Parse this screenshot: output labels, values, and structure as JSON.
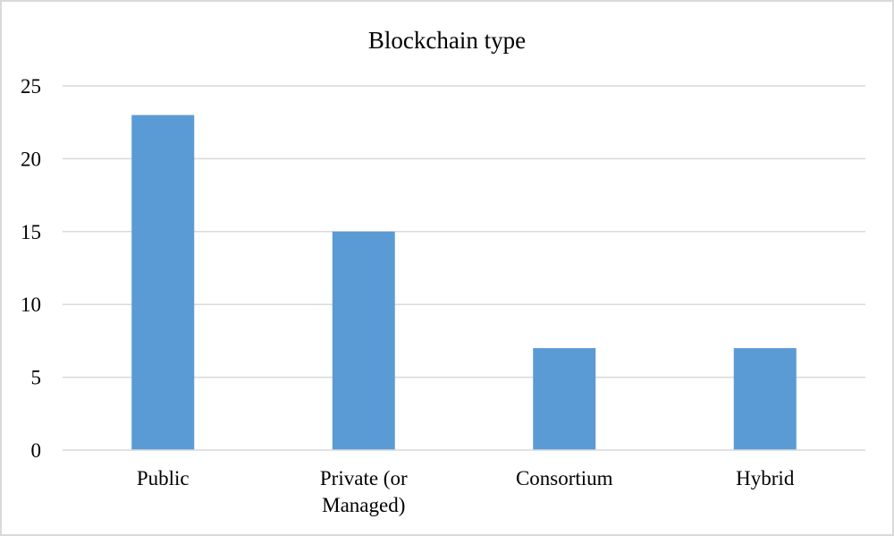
{
  "chart_data": {
    "type": "bar",
    "title": "Blockchain  type",
    "categories": [
      "Public",
      "Private (or Managed)",
      "Consortium",
      "Hybrid"
    ],
    "category_lines": [
      [
        "Public"
      ],
      [
        "Private (or",
        "Managed)"
      ],
      [
        "Consortium"
      ],
      [
        "Hybrid"
      ]
    ],
    "values": [
      23,
      15,
      7,
      7
    ],
    "ylim": [
      0,
      25
    ],
    "yticks": [
      0,
      5,
      10,
      15,
      20,
      25
    ],
    "grid": true,
    "legend": "none",
    "colors": {
      "bar": "#5b9bd5",
      "grid": "#d9d9d9",
      "axis": "#d9d9d9"
    }
  }
}
